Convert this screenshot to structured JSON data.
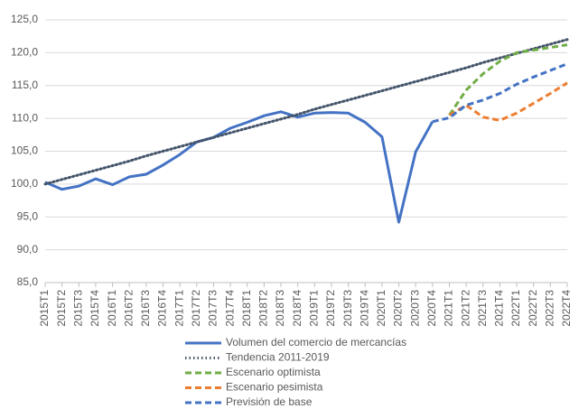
{
  "chart_data": {
    "type": "line",
    "categories": [
      "2015T1",
      "2015T2",
      "2015T3",
      "2015T4",
      "2016T1",
      "2016T2",
      "2016T3",
      "2016T4",
      "2017T1",
      "2017T2",
      "2017T3",
      "2017T4",
      "2018T1",
      "2018T2",
      "2018T3",
      "2018T4",
      "2019T1",
      "2019T2",
      "2019T3",
      "2019T4",
      "2020T1",
      "2020T2",
      "2020T3",
      "2020T4",
      "2021T1",
      "2021T2",
      "2021T3",
      "2021T4",
      "2022T1",
      "2022T2",
      "2022T3",
      "2022T4"
    ],
    "series": [
      {
        "name": "Volumen del comercio de mercancías",
        "color": "#4472c4",
        "dash": "solid",
        "values": [
          100.3,
          99.2,
          99.7,
          100.8,
          99.9,
          101.1,
          101.5,
          102.9,
          104.5,
          106.4,
          107.1,
          108.5,
          109.4,
          110.4,
          111.0,
          110.2,
          110.8,
          110.9,
          110.8,
          109.4,
          107.2,
          94.2,
          104.9,
          109.5,
          null,
          null,
          null,
          null,
          null,
          null,
          null,
          null
        ]
      },
      {
        "name": "Tendencia 2011-2019",
        "color": "#44546a",
        "dash": "dotted",
        "values": [
          100.0,
          100.7,
          101.4,
          102.1,
          102.8,
          103.5,
          104.3,
          105.0,
          105.7,
          106.4,
          107.1,
          107.8,
          108.5,
          109.2,
          109.9,
          110.6,
          111.4,
          112.1,
          112.8,
          113.5,
          114.2,
          114.9,
          115.6,
          116.3,
          117.0,
          117.7,
          118.5,
          119.2,
          119.9,
          120.6,
          121.3,
          122.0
        ]
      },
      {
        "name": "Escenario optimista",
        "color": "#70ad47",
        "dash": "dashed",
        "values": [
          null,
          null,
          null,
          null,
          null,
          null,
          null,
          null,
          null,
          null,
          null,
          null,
          null,
          null,
          null,
          null,
          null,
          null,
          null,
          null,
          null,
          null,
          null,
          null,
          110.5,
          114.3,
          116.8,
          118.7,
          120.0,
          120.4,
          120.8,
          121.2
        ]
      },
      {
        "name": "Escenario pesimista",
        "color": "#ed7d31",
        "dash": "dashed",
        "values": [
          null,
          null,
          null,
          null,
          null,
          null,
          null,
          null,
          null,
          null,
          null,
          null,
          null,
          null,
          null,
          null,
          null,
          null,
          null,
          null,
          null,
          null,
          null,
          null,
          110.5,
          112.0,
          110.2,
          109.7,
          110.8,
          112.3,
          113.8,
          115.4
        ]
      },
      {
        "name": "Previsión de base",
        "color": "#4472c4",
        "dash": "dashed",
        "values": [
          null,
          null,
          null,
          null,
          null,
          null,
          null,
          null,
          null,
          null,
          null,
          null,
          null,
          null,
          null,
          null,
          null,
          null,
          null,
          null,
          null,
          null,
          null,
          109.5,
          110.1,
          112.0,
          112.8,
          113.8,
          115.2,
          116.3,
          117.3,
          118.3
        ]
      }
    ],
    "ylim": [
      85,
      125
    ],
    "yticks": [
      {
        "value": 85,
        "label": "85,0"
      },
      {
        "value": 90,
        "label": "90,0"
      },
      {
        "value": 95,
        "label": "95,0"
      },
      {
        "value": 100,
        "label": "100,0"
      },
      {
        "value": 105,
        "label": "105,0"
      },
      {
        "value": 110,
        "label": "110,0"
      },
      {
        "value": 115,
        "label": "115,0"
      },
      {
        "value": 120,
        "label": "120,0"
      },
      {
        "value": 125,
        "label": "125,0"
      }
    ],
    "grid": true
  }
}
